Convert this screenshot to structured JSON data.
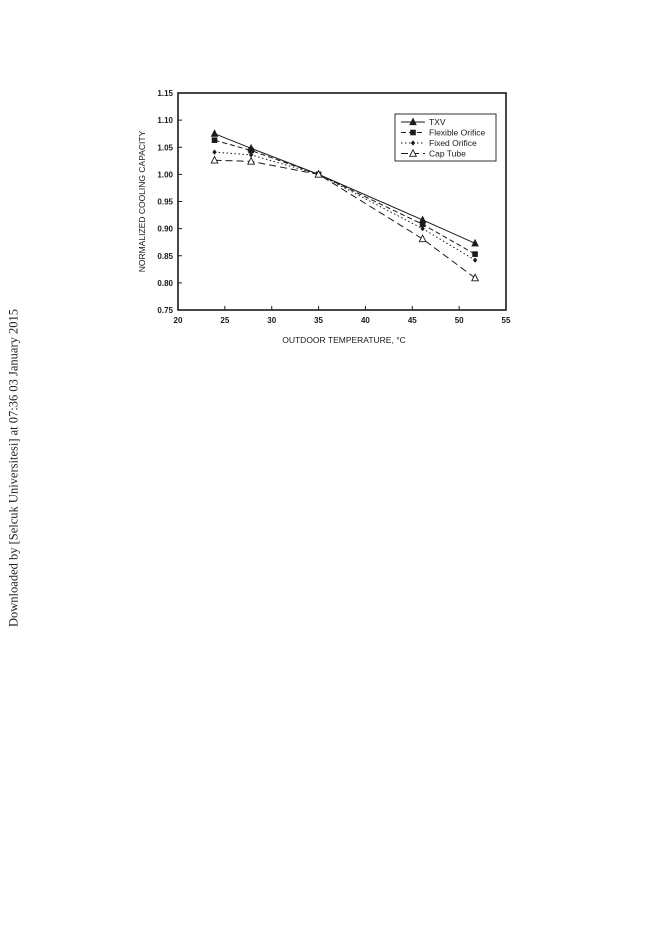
{
  "watermark": {
    "text": "Downloaded by [Selcuk Universitesi] at 07:36 03 January 2015"
  },
  "colors": {
    "ink": "#1a1a1a",
    "background": "#ffffff"
  },
  "chart_data": {
    "type": "line",
    "title": "",
    "xlabel": "OUTDOOR TEMPERATURE, °C",
    "ylabel": "NORMALIZED COOLING CAPACITY",
    "xlim": [
      20,
      55
    ],
    "ylim": [
      0.75,
      1.15
    ],
    "xticks": [
      "20",
      "25",
      "30",
      "35",
      "40",
      "45",
      "50",
      "55"
    ],
    "yticks": [
      "0.75",
      "0.80",
      "0.85",
      "0.90",
      "0.95",
      "1.00",
      "1.05",
      "1.10",
      "1.15"
    ],
    "grid": false,
    "legend_position": "top-right",
    "x": [
      23.9,
      27.8,
      35,
      46.1,
      51.7
    ],
    "series": [
      {
        "name": "TXV",
        "values": [
          1.075,
          1.048,
          1.0,
          0.916,
          0.873
        ],
        "marker": "filled-triangle",
        "line": "solid"
      },
      {
        "name": "Flexible Orifice",
        "values": [
          1.063,
          1.044,
          1.0,
          0.908,
          0.853
        ],
        "marker": "filled-square",
        "line": "dashed"
      },
      {
        "name": "Fixed Orifice",
        "values": [
          1.041,
          1.036,
          1.0,
          0.9,
          0.842
        ],
        "marker": "filled-diamond",
        "line": "dotted"
      },
      {
        "name": "Cap Tube",
        "values": [
          1.026,
          1.024,
          1.0,
          0.881,
          0.809
        ],
        "marker": "open-triangle",
        "line": "long-dashed"
      }
    ]
  }
}
